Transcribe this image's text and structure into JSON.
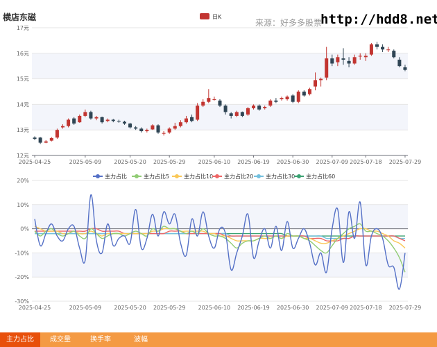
{
  "header": {
    "title": "横店东磁",
    "source": "来源：好多多股票",
    "url": "http://hdd8.net"
  },
  "tabs": [
    {
      "label": "主力占比",
      "active": true
    },
    {
      "label": "成交量",
      "active": false
    },
    {
      "label": "换手率",
      "active": false
    },
    {
      "label": "波幅",
      "active": false
    }
  ],
  "colors": {
    "up": "#c23531",
    "down": "#2f4554",
    "band": "#f3f5fb",
    "tab_bar": "#f49a43",
    "tab_active": "#e8500b"
  },
  "chart_data": [
    {
      "type": "candlestick",
      "legend": [
        "日K"
      ],
      "ylim": [
        12,
        17
      ],
      "yticks": [
        "12元",
        "13元",
        "14元",
        "15元",
        "16元",
        "17元"
      ],
      "x_tick_labels": [
        "2025-04-25",
        "2025-05-09",
        "2025-05-20",
        "2025-05-29",
        "2025-06-10",
        "2025-06-19",
        "2025-06-30",
        "2025-07-09",
        "2025-07-18",
        "2025-07-29"
      ],
      "candles": [
        [
          12.7,
          12.65,
          12.6,
          12.75
        ],
        [
          12.7,
          12.5,
          12.45,
          12.72
        ],
        [
          12.5,
          12.55,
          12.48,
          12.6
        ],
        [
          12.58,
          12.68,
          12.55,
          12.72
        ],
        [
          12.7,
          13.0,
          12.65,
          13.05
        ],
        [
          13.1,
          13.15,
          13.05,
          13.22
        ],
        [
          13.15,
          13.4,
          13.1,
          13.45
        ],
        [
          13.45,
          13.25,
          13.2,
          13.5
        ],
        [
          13.3,
          13.55,
          13.28,
          13.6
        ],
        [
          13.55,
          13.7,
          13.5,
          13.8
        ],
        [
          13.7,
          13.45,
          13.4,
          13.75
        ],
        [
          13.45,
          13.5,
          13.38,
          13.55
        ],
        [
          13.5,
          13.3,
          13.25,
          13.52
        ],
        [
          13.35,
          13.4,
          13.3,
          13.45
        ],
        [
          13.4,
          13.35,
          13.3,
          13.43
        ],
        [
          13.35,
          13.33,
          13.28,
          13.4
        ],
        [
          13.32,
          13.25,
          13.2,
          13.36
        ],
        [
          13.25,
          13.1,
          13.05,
          13.28
        ],
        [
          13.1,
          13.05,
          13.0,
          13.15
        ],
        [
          13.05,
          12.95,
          12.9,
          13.1
        ],
        [
          12.95,
          13.0,
          12.9,
          13.05
        ],
        [
          13.02,
          13.18,
          13.0,
          13.22
        ],
        [
          13.18,
          12.9,
          12.85,
          13.22
        ],
        [
          12.85,
          12.88,
          12.78,
          12.95
        ],
        [
          12.9,
          13.05,
          12.85,
          13.1
        ],
        [
          13.05,
          13.15,
          13.0,
          13.28
        ],
        [
          13.15,
          13.3,
          13.1,
          13.38
        ],
        [
          13.3,
          13.45,
          13.25,
          13.55
        ],
        [
          13.5,
          13.35,
          13.3,
          13.6
        ],
        [
          13.4,
          13.95,
          13.35,
          14.05
        ],
        [
          13.95,
          14.1,
          13.9,
          14.2
        ],
        [
          14.1,
          14.25,
          14.05,
          14.6
        ],
        [
          14.2,
          14.2,
          14.15,
          14.3
        ],
        [
          14.15,
          13.95,
          13.9,
          14.2
        ],
        [
          13.95,
          13.7,
          13.6,
          14.0
        ],
        [
          13.65,
          13.55,
          13.45,
          13.7
        ],
        [
          13.55,
          13.7,
          13.5,
          13.75
        ],
        [
          13.7,
          13.55,
          13.5,
          13.72
        ],
        [
          13.6,
          13.85,
          13.55,
          13.9
        ],
        [
          13.85,
          13.95,
          13.8,
          14.0
        ],
        [
          13.95,
          13.8,
          13.75,
          14.0
        ],
        [
          13.85,
          13.9,
          13.8,
          13.95
        ],
        [
          13.95,
          14.15,
          13.9,
          14.2
        ],
        [
          14.15,
          14.1,
          14.05,
          14.25
        ],
        [
          14.2,
          14.25,
          14.15,
          14.3
        ],
        [
          14.2,
          14.3,
          14.15,
          14.35
        ],
        [
          14.35,
          14.1,
          14.05,
          14.4
        ],
        [
          14.1,
          14.5,
          14.05,
          14.55
        ],
        [
          14.5,
          14.35,
          14.3,
          14.55
        ],
        [
          14.4,
          14.6,
          14.35,
          14.65
        ],
        [
          14.7,
          14.95,
          14.55,
          15.25
        ],
        [
          14.95,
          15.0,
          14.7,
          15.05
        ],
        [
          15.05,
          15.8,
          14.95,
          16.25
        ],
        [
          15.8,
          15.6,
          15.5,
          15.95
        ],
        [
          15.65,
          15.85,
          15.5,
          15.95
        ],
        [
          15.8,
          15.75,
          15.55,
          16.2
        ],
        [
          15.7,
          15.6,
          15.45,
          15.85
        ],
        [
          15.6,
          15.85,
          15.55,
          15.95
        ],
        [
          15.9,
          15.9,
          15.75,
          16.0
        ],
        [
          15.85,
          15.9,
          15.7,
          16.0
        ],
        [
          15.95,
          16.35,
          15.9,
          16.4
        ],
        [
          16.35,
          16.25,
          16.15,
          16.45
        ],
        [
          16.25,
          16.15,
          16.05,
          16.35
        ],
        [
          16.15,
          16.15,
          16.05,
          16.25
        ],
        [
          16.1,
          15.85,
          15.8,
          16.15
        ],
        [
          15.75,
          15.5,
          15.45,
          15.85
        ],
        [
          15.45,
          15.35,
          15.3,
          15.55
        ]
      ]
    },
    {
      "type": "line",
      "ylim": [
        -30,
        20
      ],
      "yticks": [
        "-30%",
        "-20%",
        "-10%",
        "0%",
        "10%",
        "20%"
      ],
      "x_tick_labels": [
        "2025-04-25",
        "2025-05-09",
        "2025-05-20",
        "2025-05-29",
        "2025-06-10",
        "2025-06-19",
        "2025-06-30",
        "2025-07-09",
        "2025-07-18",
        "2025-07-29"
      ],
      "series": [
        {
          "name": "主力占比",
          "color": "#5470c6",
          "values": [
            4,
            -7,
            -2,
            2,
            -3,
            -5,
            0,
            1,
            -8,
            -13,
            14,
            -5,
            -10,
            2,
            -7,
            -4,
            -3,
            -6,
            8,
            -8,
            -4,
            6,
            -3,
            7,
            2,
            6,
            -6,
            -11,
            4,
            -3,
            7,
            -3,
            -8,
            0,
            -2,
            -17,
            -10,
            -3,
            6,
            -12,
            -5,
            0,
            -8,
            1,
            -9,
            3,
            -8,
            -4,
            0,
            -6,
            -15,
            -10,
            -18,
            0,
            8,
            -14,
            7,
            -4,
            11,
            -15,
            -3,
            0,
            -4,
            -15,
            -16,
            -25,
            -10
          ]
        },
        {
          "name": "主力占比5",
          "color": "#91cc75",
          "values": [
            -1,
            -3,
            -1,
            0,
            -2,
            -3,
            -2,
            -1,
            -3,
            -4,
            0,
            -2,
            -4,
            -3,
            -2,
            -2,
            -3,
            -2,
            -1,
            -2,
            -3,
            0,
            -1,
            1,
            0,
            0,
            -1,
            -2,
            -1,
            -2,
            0,
            -2,
            -3,
            -3,
            -4,
            -6,
            -8,
            -6,
            -5,
            -5,
            -4,
            -3,
            -4,
            -3,
            -4,
            -2,
            -3,
            -3,
            -4,
            -5,
            -7,
            -9,
            -10,
            -7,
            -4,
            -2,
            0,
            1,
            2,
            -1,
            -1,
            -2,
            -3,
            -5,
            -8,
            -12,
            -18
          ]
        },
        {
          "name": "主力占比10",
          "color": "#fac858",
          "values": [
            1,
            0,
            -1,
            -1,
            -1,
            -2,
            -2,
            -1,
            -2,
            -2,
            -1,
            -2,
            -3,
            -2,
            -2,
            -2,
            -2,
            -2,
            -2,
            -2,
            -2,
            -1,
            -1,
            0,
            0,
            0,
            -1,
            -1,
            -1,
            -1,
            -1,
            -2,
            -2,
            -3,
            -3,
            -4,
            -5,
            -5,
            -5,
            -5,
            -4,
            -4,
            -4,
            -3,
            -4,
            -3,
            -3,
            -3,
            -4,
            -4,
            -5,
            -6,
            -6,
            -5,
            -4,
            -3,
            -2,
            -1,
            0,
            0,
            -1,
            -1,
            -2,
            -3,
            -5,
            -6,
            -8
          ]
        },
        {
          "name": "主力占比20",
          "color": "#ee6666",
          "values": [
            -1,
            -1,
            -1,
            -1,
            -1,
            -1,
            -1,
            -1,
            -1,
            -1,
            0,
            0,
            -1,
            -1,
            -1,
            -1,
            -2,
            -2,
            -2,
            -2,
            -2,
            -2,
            -2,
            -2,
            -1,
            -1,
            -1,
            -2,
            -2,
            -2,
            -2,
            -2,
            -2,
            -2,
            -3,
            -3,
            -3,
            -3,
            -3,
            -3,
            -3,
            -3,
            -3,
            -3,
            -3,
            -3,
            -3,
            -3,
            -3,
            -4,
            -4,
            -4,
            -5,
            -5,
            -5,
            -4,
            -4,
            -3,
            -3,
            -3,
            -3,
            -3,
            -3,
            -3,
            -3,
            -4,
            -5
          ]
        },
        {
          "name": "主力占比30",
          "color": "#73c0de",
          "values": [
            -2,
            -2,
            -2,
            -2,
            -2,
            -2,
            -2,
            -2,
            -2,
            -2,
            -2,
            -2,
            -2,
            -2,
            -2,
            -2,
            -2,
            -2,
            -2,
            -2,
            -2,
            -2,
            -2,
            -2,
            -2,
            -2,
            -2,
            -2,
            -2,
            -2,
            -2,
            -2,
            -2,
            -2,
            -2,
            -3,
            -3,
            -3,
            -3,
            -3,
            -3,
            -3,
            -3,
            -3,
            -3,
            -3,
            -3,
            -3,
            -3,
            -3,
            -3,
            -3,
            -4,
            -4,
            -4,
            -4,
            -4,
            -3,
            -3,
            -3,
            -3,
            -3,
            -3,
            -3,
            -3,
            -4,
            -4
          ]
        },
        {
          "name": "主力占比60",
          "color": "#3ba272",
          "values": [
            -2,
            -2,
            -2,
            -2,
            -2,
            -2,
            -2,
            -2,
            -2,
            -2,
            -2,
            -2,
            -2,
            -2,
            -2,
            -2,
            -2,
            -2,
            -2,
            -2,
            -2,
            -2,
            -2,
            -2,
            -2,
            -2,
            -2,
            -2,
            -2,
            -2,
            -2,
            -2,
            -2,
            -2,
            -2,
            -2,
            -2,
            -2,
            -2,
            -2,
            -2,
            -2,
            -2,
            -2,
            -2,
            -3,
            -3,
            -3,
            -3,
            -3,
            -3,
            -3,
            -3,
            -3,
            -3,
            -3,
            -3,
            -3,
            -3,
            -3,
            -3,
            -3,
            -3,
            -3,
            -3,
            -3,
            -3
          ]
        }
      ]
    }
  ]
}
